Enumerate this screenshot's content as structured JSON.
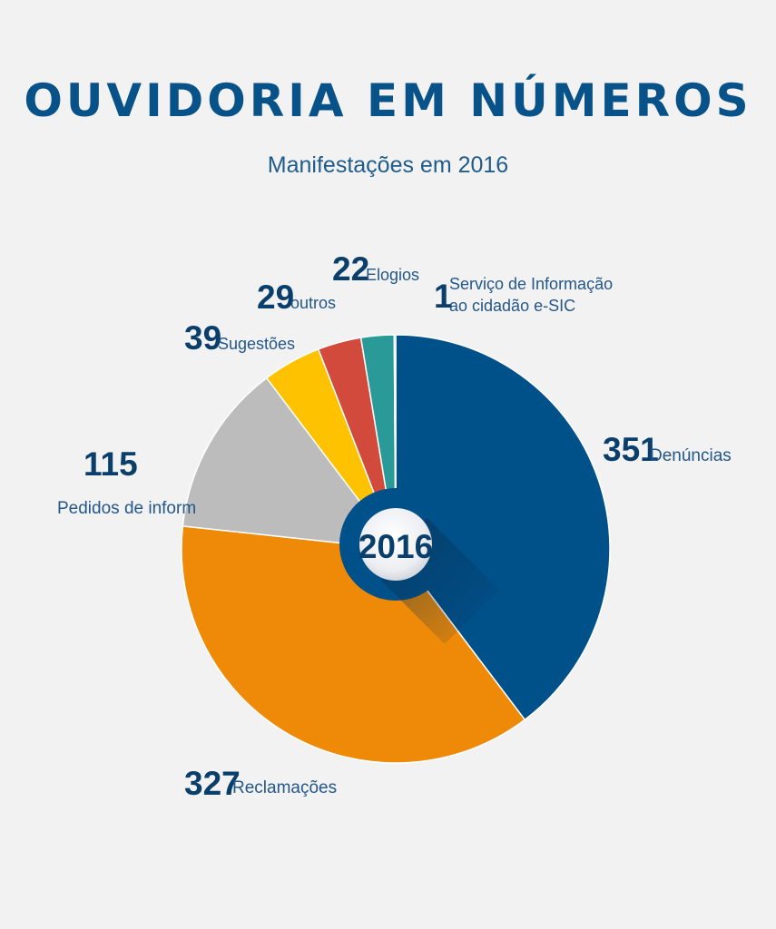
{
  "title": "OUVIDORIA EM NÚMEROS",
  "subtitle": "Manifestações em 2016",
  "center_label": "2016",
  "chart_data": {
    "type": "pie",
    "title": "OUVIDORIA EM NÚMEROS",
    "subtitle": "Manifestações em 2016",
    "slices": [
      {
        "name": "Denúncias",
        "value": 351,
        "color": "#00508a"
      },
      {
        "name": "Reclamações",
        "value": 327,
        "color": "#ee8a07"
      },
      {
        "name": "Pedidos de inform",
        "value": 115,
        "color": "#bcbcbc"
      },
      {
        "name": "Sugestões",
        "value": 39,
        "color": "#fec200"
      },
      {
        "name": "outros",
        "value": 29,
        "color": "#d24a3c"
      },
      {
        "name": "Elogios",
        "value": 22,
        "color": "#2a9a98"
      },
      {
        "name": "Serviço de Informação ao cidadão e-SIC",
        "value": 1,
        "color": "#7d5aa6"
      }
    ],
    "labels": [
      {
        "value": "351",
        "text": "Denúncias"
      },
      {
        "value": "327",
        "text": "Reclamações"
      },
      {
        "value": "115",
        "text": "Pedidos de inform"
      },
      {
        "value": "39",
        "text": "Sugestões"
      },
      {
        "value": "29",
        "text": "outros"
      },
      {
        "value": "22",
        "text": "Elogios"
      },
      {
        "value": "1",
        "text": [
          "Serviço de Informação",
          "ao cidadão e-SIC"
        ]
      }
    ]
  }
}
